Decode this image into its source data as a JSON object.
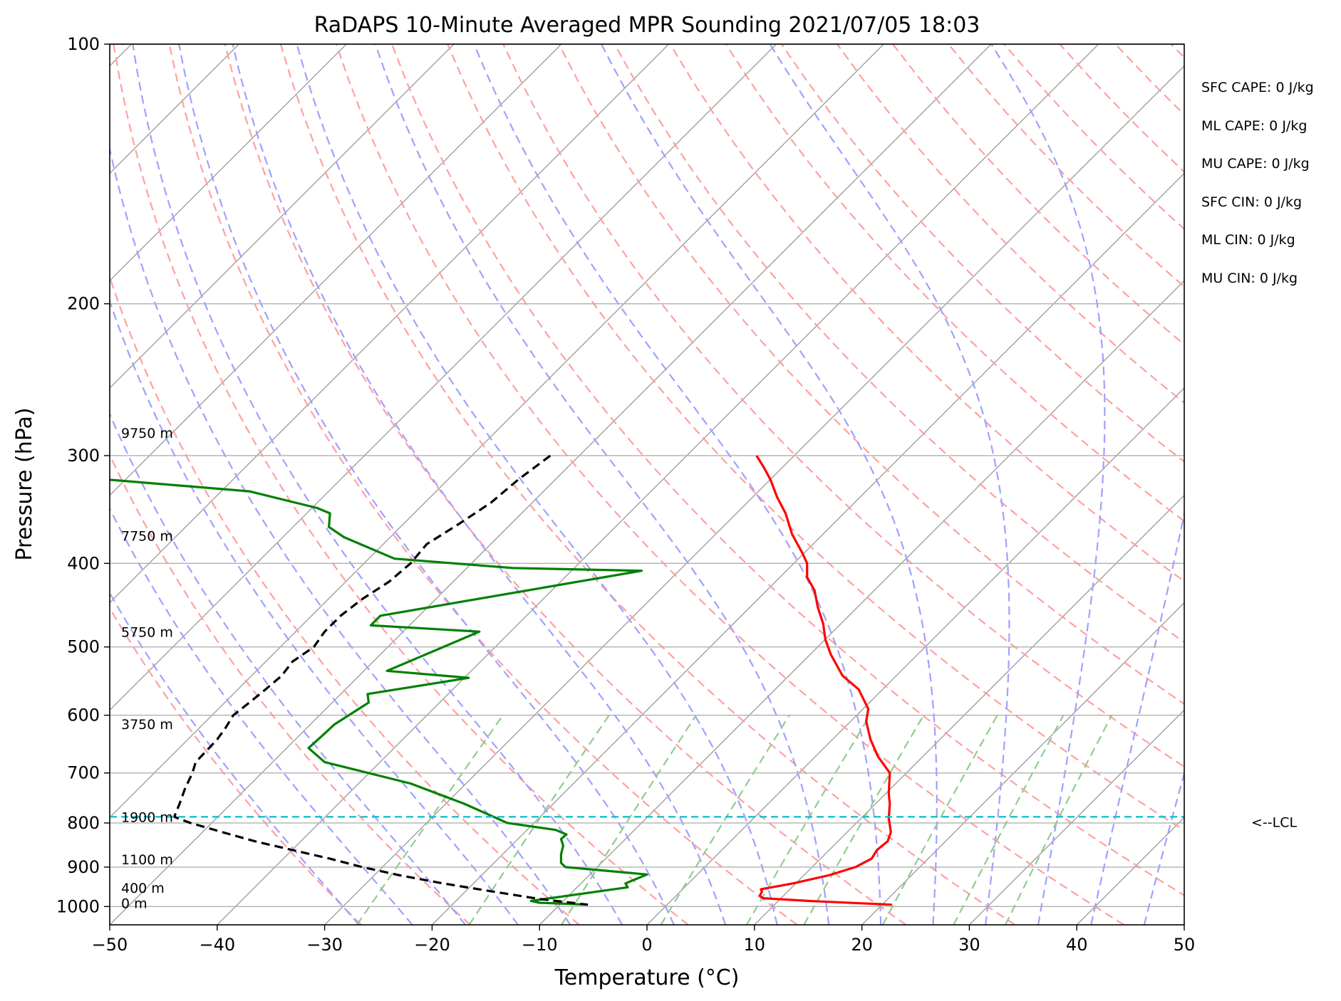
{
  "chart_data": {
    "type": "line",
    "title": "RaDAPS 10-Minute Averaged MPR Sounding 2021/07/05 18:03",
    "xlabel": "Temperature (°C)",
    "ylabel": "Pressure (hPa)",
    "xlim": [
      -50,
      50
    ],
    "ylim": [
      1050,
      100
    ],
    "y_scale": "log",
    "skew": true,
    "x_ticks": [
      "−50",
      "−40",
      "−30",
      "−20",
      "−10",
      "0",
      "10",
      "20",
      "30",
      "40",
      "50"
    ],
    "y_ticks": [
      "100",
      "200",
      "300",
      "400",
      "500",
      "600",
      "700",
      "800",
      "900",
      "1000"
    ],
    "grid": true,
    "series": [
      {
        "color": "#ff0000",
        "points": [
          [
            300,
            10.2
          ],
          [
            310,
            10.9
          ],
          [
            320,
            11.5
          ],
          [
            335,
            12.1
          ],
          [
            350,
            12.9
          ],
          [
            370,
            13.5
          ],
          [
            390,
            14.5
          ],
          [
            400,
            14.9
          ],
          [
            415,
            14.9
          ],
          [
            430,
            15.6
          ],
          [
            450,
            15.9
          ],
          [
            470,
            16.4
          ],
          [
            490,
            16.6
          ],
          [
            510,
            17.1
          ],
          [
            540,
            18.2
          ],
          [
            560,
            19.7
          ],
          [
            590,
            20.6
          ],
          [
            610,
            20.4
          ],
          [
            640,
            20.8
          ],
          [
            670,
            21.5
          ],
          [
            700,
            22.6
          ],
          [
            740,
            22.5
          ],
          [
            760,
            22.6
          ],
          [
            790,
            22.5
          ],
          [
            820,
            22.7
          ],
          [
            840,
            22.4
          ],
          [
            860,
            21.4
          ],
          [
            880,
            20.9
          ],
          [
            900,
            19.4
          ],
          [
            920,
            16.9
          ],
          [
            940,
            13.6
          ],
          [
            955,
            10.6
          ],
          [
            960,
            10.7
          ],
          [
            972,
            10.5
          ],
          [
            978,
            10.8
          ],
          [
            985,
            15.0
          ],
          [
            995,
            22.8
          ]
        ]
      },
      {
        "color": "#008000",
        "points": [
          [
            320,
            -50
          ],
          [
            330,
            -37
          ],
          [
            345,
            -30.7
          ],
          [
            350,
            -29.5
          ],
          [
            363,
            -29.6
          ],
          [
            373,
            -28.2
          ],
          [
            395,
            -23.5
          ],
          [
            405,
            -12.5
          ],
          [
            408,
            -0.5
          ],
          [
            460,
            -24.8
          ],
          [
            472,
            -25.7
          ],
          [
            480,
            -15.6
          ],
          [
            533,
            -24.2
          ],
          [
            543,
            -16.6
          ],
          [
            567,
            -26.0
          ],
          [
            580,
            -25.9
          ],
          [
            615,
            -29.1
          ],
          [
            630,
            -30.0
          ],
          [
            655,
            -31.5
          ],
          [
            680,
            -30.0
          ],
          [
            720,
            -22.0
          ],
          [
            760,
            -17.0
          ],
          [
            800,
            -13.0
          ],
          [
            815,
            -8.5
          ],
          [
            825,
            -7.5
          ],
          [
            835,
            -8.0
          ],
          [
            850,
            -7.8
          ],
          [
            870,
            -8.0
          ],
          [
            890,
            -8.0
          ],
          [
            900,
            -7.6
          ],
          [
            918,
            0.0
          ],
          [
            940,
            -2.0
          ],
          [
            950,
            -1.8
          ],
          [
            985,
            -10.8
          ],
          [
            990,
            -10.0
          ],
          [
            995,
            -5.5
          ]
        ]
      },
      {
        "color": "#000000",
        "dash": "dashed",
        "points": [
          [
            300,
            -9.0
          ],
          [
            320,
            -12.0
          ],
          [
            340,
            -14.5
          ],
          [
            360,
            -17.5
          ],
          [
            380,
            -20.5
          ],
          [
            400,
            -22.0
          ],
          [
            420,
            -24.0
          ],
          [
            440,
            -26.5
          ],
          [
            460,
            -28.5
          ],
          [
            480,
            -30.0
          ],
          [
            500,
            -31.0
          ],
          [
            520,
            -33.0
          ],
          [
            540,
            -34.0
          ],
          [
            560,
            -35.5
          ],
          [
            580,
            -37.0
          ],
          [
            600,
            -38.5
          ],
          [
            620,
            -39.2
          ],
          [
            640,
            -40.0
          ],
          [
            660,
            -41.0
          ],
          [
            680,
            -42.0
          ],
          [
            700,
            -42.3
          ],
          [
            730,
            -43.0
          ],
          [
            760,
            -43.5
          ],
          [
            787,
            -44.0
          ],
          [
            800,
            -42.5
          ],
          [
            820,
            -39.5
          ],
          [
            840,
            -36.5
          ],
          [
            860,
            -33.0
          ],
          [
            880,
            -29.5
          ],
          [
            900,
            -26.5
          ],
          [
            920,
            -23.0
          ],
          [
            940,
            -19.0
          ],
          [
            960,
            -14.5
          ],
          [
            980,
            -10.0
          ],
          [
            995,
            -5.5
          ]
        ]
      }
    ],
    "height_labels": [
      {
        "p": 285,
        "text": "9750 m"
      },
      {
        "p": 375,
        "text": "7750 m"
      },
      {
        "p": 485,
        "text": "5750 m"
      },
      {
        "p": 620,
        "text": "3750 m"
      },
      {
        "p": 795,
        "text": "1900 m"
      },
      {
        "p": 890,
        "text": "1100 m"
      },
      {
        "p": 960,
        "text": "400 m"
      },
      {
        "p": 1000,
        "text": "0 m"
      }
    ],
    "lcl": {
      "p": 787,
      "label": "<--LCL"
    },
    "indices": [
      "SFC CAPE: 0 J/kg",
      "ML CAPE: 0 J/kg",
      "MU CAPE: 0 J/kg",
      "SFC CIN: 0 J/kg",
      "ML CIN: 0 J/kg",
      "MU CIN: 0 J/kg"
    ],
    "colors": {
      "isotherm": "#a0a0a0",
      "dry_adiabat": "#ffa0a0",
      "moist_adiabat": "#a0a0ff",
      "mixing_ratio": "#90cc90",
      "lcl_line": "#17becf"
    }
  }
}
